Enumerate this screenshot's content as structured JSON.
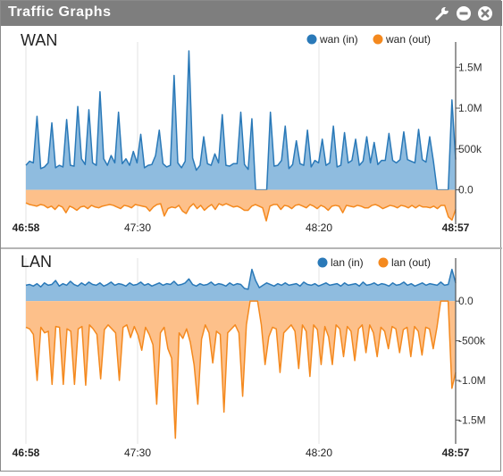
{
  "window": {
    "title": "Traffic Graphs",
    "icons": [
      "wrench-icon",
      "minimize-icon",
      "close-icon"
    ]
  },
  "colors": {
    "in_line": "#2a79b8",
    "in_fill": "#8fbcdf",
    "out_line": "#f4891e",
    "out_fill": "#fdc08a",
    "titlebar": "#7e7e7e"
  },
  "chart_data": [
    {
      "type": "area",
      "title": "WAN",
      "x_ticks": [
        "46:58",
        "47:30",
        "48:20",
        "48:57"
      ],
      "x_tick_bold": [
        true,
        false,
        false,
        true
      ],
      "y_ticks": [
        "1.5M",
        "1.0M",
        "500k",
        "0.0"
      ],
      "y_tick_values": [
        1500000,
        1000000,
        500000,
        0
      ],
      "ylim": [
        -420000,
        1700000
      ],
      "grid": false,
      "legend_position": "top-right",
      "series": [
        {
          "name": "wan (in)",
          "color": "#2a79b8",
          "values": [
            300000,
            350000,
            330000,
            900000,
            260000,
            280000,
            330000,
            820000,
            270000,
            300000,
            280000,
            860000,
            300000,
            290000,
            1020000,
            380000,
            310000,
            980000,
            330000,
            300000,
            1200000,
            380000,
            300000,
            420000,
            330000,
            950000,
            320000,
            380000,
            300000,
            470000,
            330000,
            680000,
            270000,
            300000,
            310000,
            420000,
            730000,
            320000,
            280000,
            300000,
            1400000,
            330000,
            270000,
            350000,
            1700000,
            390000,
            240000,
            300000,
            650000,
            320000,
            300000,
            440000,
            330000,
            920000,
            300000,
            290000,
            320000,
            320000,
            950000,
            310000,
            250000,
            870000,
            0,
            0,
            0,
            0,
            950000,
            290000,
            300000,
            360000,
            780000,
            260000,
            310000,
            600000,
            320000,
            300000,
            730000,
            280000,
            360000,
            330000,
            620000,
            300000,
            330000,
            780000,
            280000,
            300000,
            700000,
            330000,
            360000,
            620000,
            300000,
            350000,
            650000,
            330000,
            580000,
            310000,
            360000,
            360000,
            690000,
            360000,
            330000,
            370000,
            710000,
            370000,
            350000,
            330000,
            740000,
            370000,
            340000,
            650000,
            350000,
            0,
            0,
            0,
            0,
            1100000,
            370000
          ]
        },
        {
          "name": "wan (out)",
          "color": "#f4891e",
          "values": [
            -160000,
            -180000,
            -190000,
            -200000,
            -180000,
            -190000,
            -220000,
            -200000,
            -240000,
            -190000,
            -210000,
            -280000,
            -200000,
            -220000,
            -250000,
            -210000,
            -200000,
            -230000,
            -190000,
            -210000,
            -220000,
            -200000,
            -190000,
            -180000,
            -190000,
            -210000,
            -230000,
            -190000,
            -200000,
            -220000,
            -180000,
            -190000,
            -200000,
            -210000,
            -260000,
            -210000,
            -180000,
            -170000,
            -320000,
            -230000,
            -210000,
            -220000,
            -190000,
            -260000,
            -290000,
            -210000,
            -170000,
            -230000,
            -190000,
            -250000,
            -210000,
            -180000,
            -240000,
            -170000,
            -190000,
            -170000,
            -190000,
            -210000,
            -200000,
            -220000,
            -250000,
            -250000,
            -200000,
            -180000,
            -200000,
            -220000,
            -380000,
            -200000,
            -180000,
            -180000,
            -240000,
            -190000,
            -200000,
            -230000,
            -190000,
            -180000,
            -200000,
            -220000,
            -180000,
            -200000,
            -230000,
            -190000,
            -210000,
            -250000,
            -200000,
            -190000,
            -200000,
            -280000,
            -190000,
            -200000,
            -210000,
            -190000,
            -200000,
            -220000,
            -220000,
            -190000,
            -180000,
            -200000,
            -230000,
            -210000,
            -190000,
            -200000,
            -220000,
            -190000,
            -200000,
            -220000,
            -190000,
            -220000,
            -190000,
            -210000,
            -210000,
            -220000,
            -200000,
            -230000,
            -190000,
            -190000,
            -330000,
            -370000,
            -240000
          ]
        }
      ]
    },
    {
      "type": "area",
      "title": "LAN",
      "x_ticks": [
        "46:58",
        "47:30",
        "48:20",
        "48:57"
      ],
      "x_tick_bold": [
        true,
        false,
        false,
        true
      ],
      "y_ticks": [
        "0.0",
        "-500k",
        "-1.0M",
        "-1.5M"
      ],
      "y_tick_values": [
        0,
        -500000,
        -1000000,
        -1500000
      ],
      "ylim": [
        -1800000,
        430000
      ],
      "grid": false,
      "legend_position": "top-right",
      "series": [
        {
          "name": "lan (in)",
          "color": "#2a79b8",
          "values": [
            200000,
            210000,
            190000,
            220000,
            180000,
            230000,
            200000,
            210000,
            260000,
            190000,
            220000,
            200000,
            250000,
            210000,
            190000,
            230000,
            200000,
            240000,
            210000,
            200000,
            230000,
            190000,
            210000,
            240000,
            200000,
            220000,
            210000,
            190000,
            230000,
            200000,
            210000,
            240000,
            200000,
            220000,
            190000,
            210000,
            230000,
            200000,
            220000,
            210000,
            250000,
            200000,
            210000,
            230000,
            280000,
            210000,
            190000,
            220000,
            200000,
            210000,
            240000,
            200000,
            220000,
            210000,
            190000,
            230000,
            200000,
            220000,
            210000,
            160000,
            150000,
            400000,
            260000,
            170000,
            200000,
            230000,
            210000,
            190000,
            220000,
            200000,
            230000,
            200000,
            210000,
            220000,
            190000,
            240000,
            210000,
            200000,
            220000,
            190000,
            210000,
            230000,
            200000,
            210000,
            220000,
            190000,
            230000,
            200000,
            210000,
            220000,
            190000,
            240000,
            200000,
            210000,
            230000,
            200000,
            220000,
            210000,
            190000,
            230000,
            200000,
            210000,
            240000,
            200000,
            220000,
            190000,
            210000,
            230000,
            200000,
            220000,
            210000,
            200000,
            240000,
            200000,
            210000,
            400000,
            230000
          ]
        },
        {
          "name": "lan (out)",
          "color": "#f4891e",
          "values": [
            -330000,
            -350000,
            -420000,
            -1000000,
            -330000,
            -400000,
            -380000,
            -1050000,
            -320000,
            -330000,
            -1050000,
            -350000,
            -380000,
            -1050000,
            -350000,
            -320000,
            -1060000,
            -300000,
            -350000,
            -420000,
            -980000,
            -360000,
            -300000,
            -350000,
            -400000,
            -1000000,
            -330000,
            -300000,
            -460000,
            -320000,
            -430000,
            -620000,
            -330000,
            -420000,
            -550000,
            -1300000,
            -400000,
            -330000,
            -600000,
            -720000,
            -1730000,
            -400000,
            -470000,
            -350000,
            -520000,
            -800000,
            -1300000,
            -480000,
            -300000,
            -400000,
            -780000,
            -380000,
            -420000,
            -1400000,
            -400000,
            -350000,
            -300000,
            -400000,
            -1200000,
            -300000,
            0,
            0,
            0,
            -300000,
            -800000,
            -450000,
            -330000,
            -350000,
            -900000,
            -400000,
            -350000,
            -300000,
            -380000,
            -850000,
            -300000,
            -380000,
            -950000,
            -300000,
            -360000,
            -800000,
            -320000,
            -450000,
            -800000,
            -300000,
            -350000,
            -700000,
            -320000,
            -380000,
            -750000,
            -350000,
            -300000,
            -650000,
            -300000,
            -400000,
            -700000,
            -330000,
            -380000,
            -600000,
            -320000,
            -350000,
            -650000,
            -360000,
            -330000,
            -700000,
            -320000,
            -380000,
            -680000,
            -330000,
            -350000,
            -600000,
            -330000,
            0,
            0,
            0,
            -1100000,
            -900000
          ]
        }
      ]
    }
  ]
}
